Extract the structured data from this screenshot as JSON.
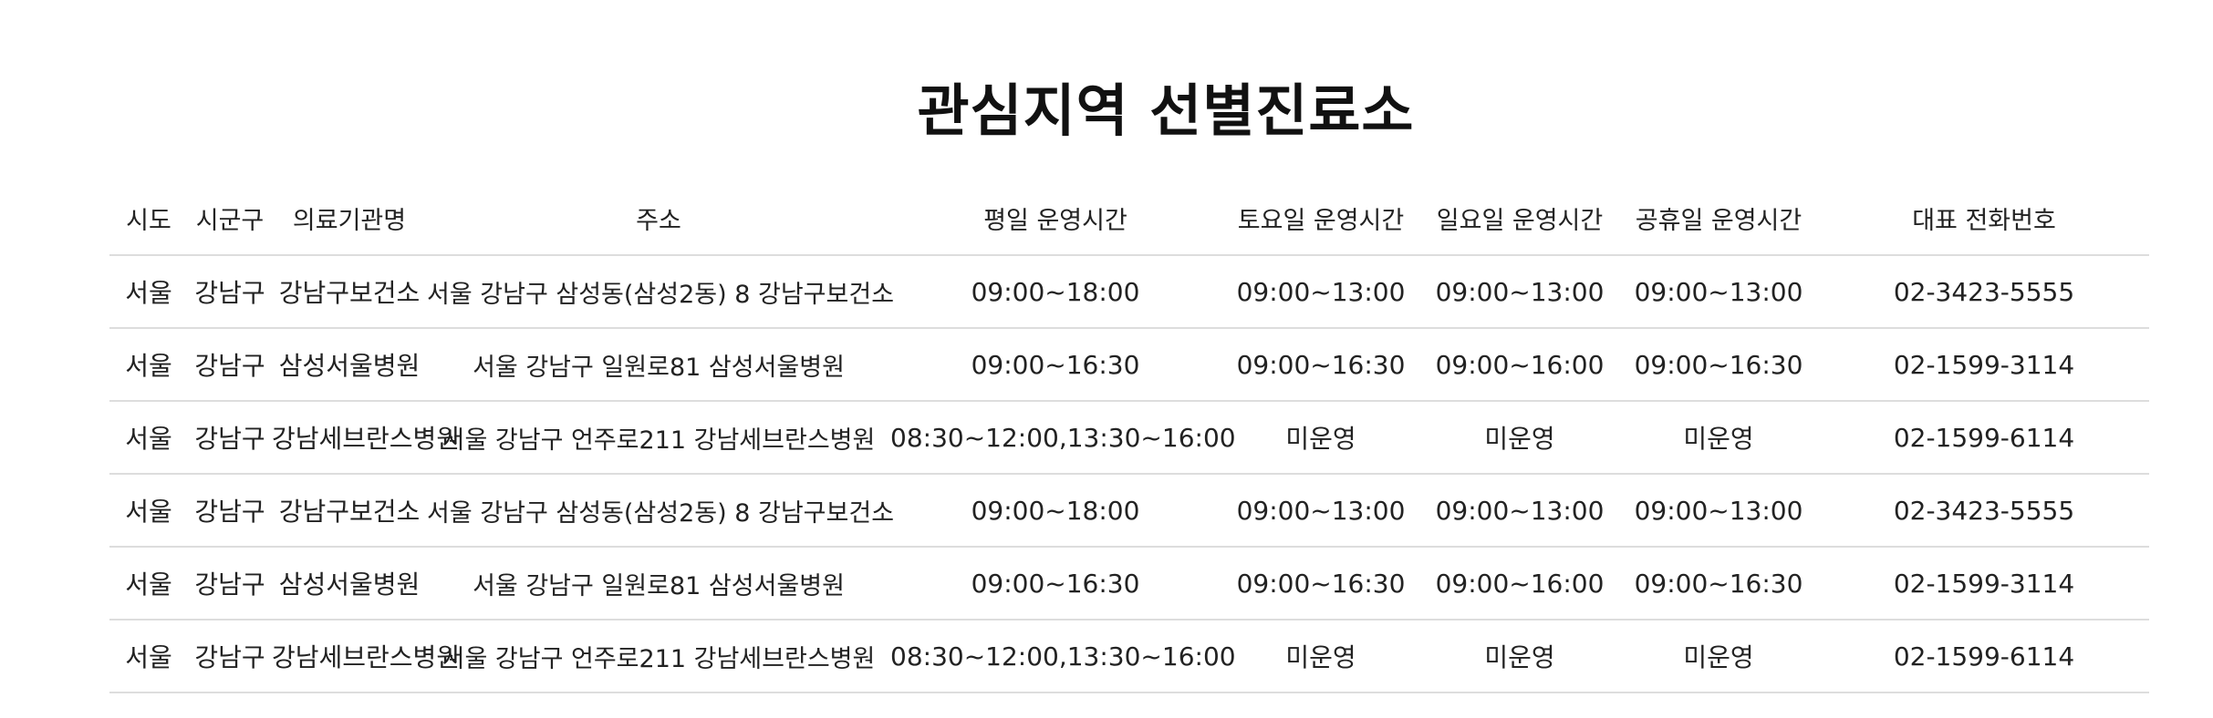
{
  "page": {
    "title": "관심지역 선별진료소"
  },
  "table": {
    "columns": [
      "시도",
      "시군구",
      "의료기관명",
      "주소",
      "평일 운영시간",
      "토요일 운영시간",
      "일요일 운영시간",
      "공휴일 운영시간",
      "대표 전화번호"
    ],
    "rows": [
      [
        "서울",
        "강남구",
        "강남구보건소",
        "서울 강남구 삼성동(삼성2동) 8 강남구보건소",
        "09:00~18:00",
        "09:00~13:00",
        "09:00~13:00",
        "09:00~13:00",
        "02-3423-5555"
      ],
      [
        "서울",
        "강남구",
        "삼성서울병원",
        "서울 강남구 일원로81 삼성서울병원",
        "09:00~16:30",
        "09:00~16:30",
        "09:00~16:00",
        "09:00~16:30",
        "02-1599-3114"
      ],
      [
        "서울",
        "강남구",
        "강남세브란스병원",
        "서울 강남구 언주로211 강남세브란스병원",
        "08:30~12:00,13:30~16:00",
        "미운영",
        "미운영",
        "미운영",
        "02-1599-6114"
      ],
      [
        "서울",
        "강남구",
        "강남구보건소",
        "서울 강남구 삼성동(삼성2동) 8 강남구보건소",
        "09:00~18:00",
        "09:00~13:00",
        "09:00~13:00",
        "09:00~13:00",
        "02-3423-5555"
      ],
      [
        "서울",
        "강남구",
        "삼성서울병원",
        "서울 강남구 일원로81 삼성서울병원",
        "09:00~16:30",
        "09:00~16:30",
        "09:00~16:00",
        "09:00~16:30",
        "02-1599-3114"
      ],
      [
        "서울",
        "강남구",
        "강남세브란스병원",
        "서울 강남구 언주로211 강남세브란스병원",
        "08:30~12:00,13:30~16:00",
        "미운영",
        "미운영",
        "미운영",
        "02-1599-6114"
      ]
    ]
  }
}
